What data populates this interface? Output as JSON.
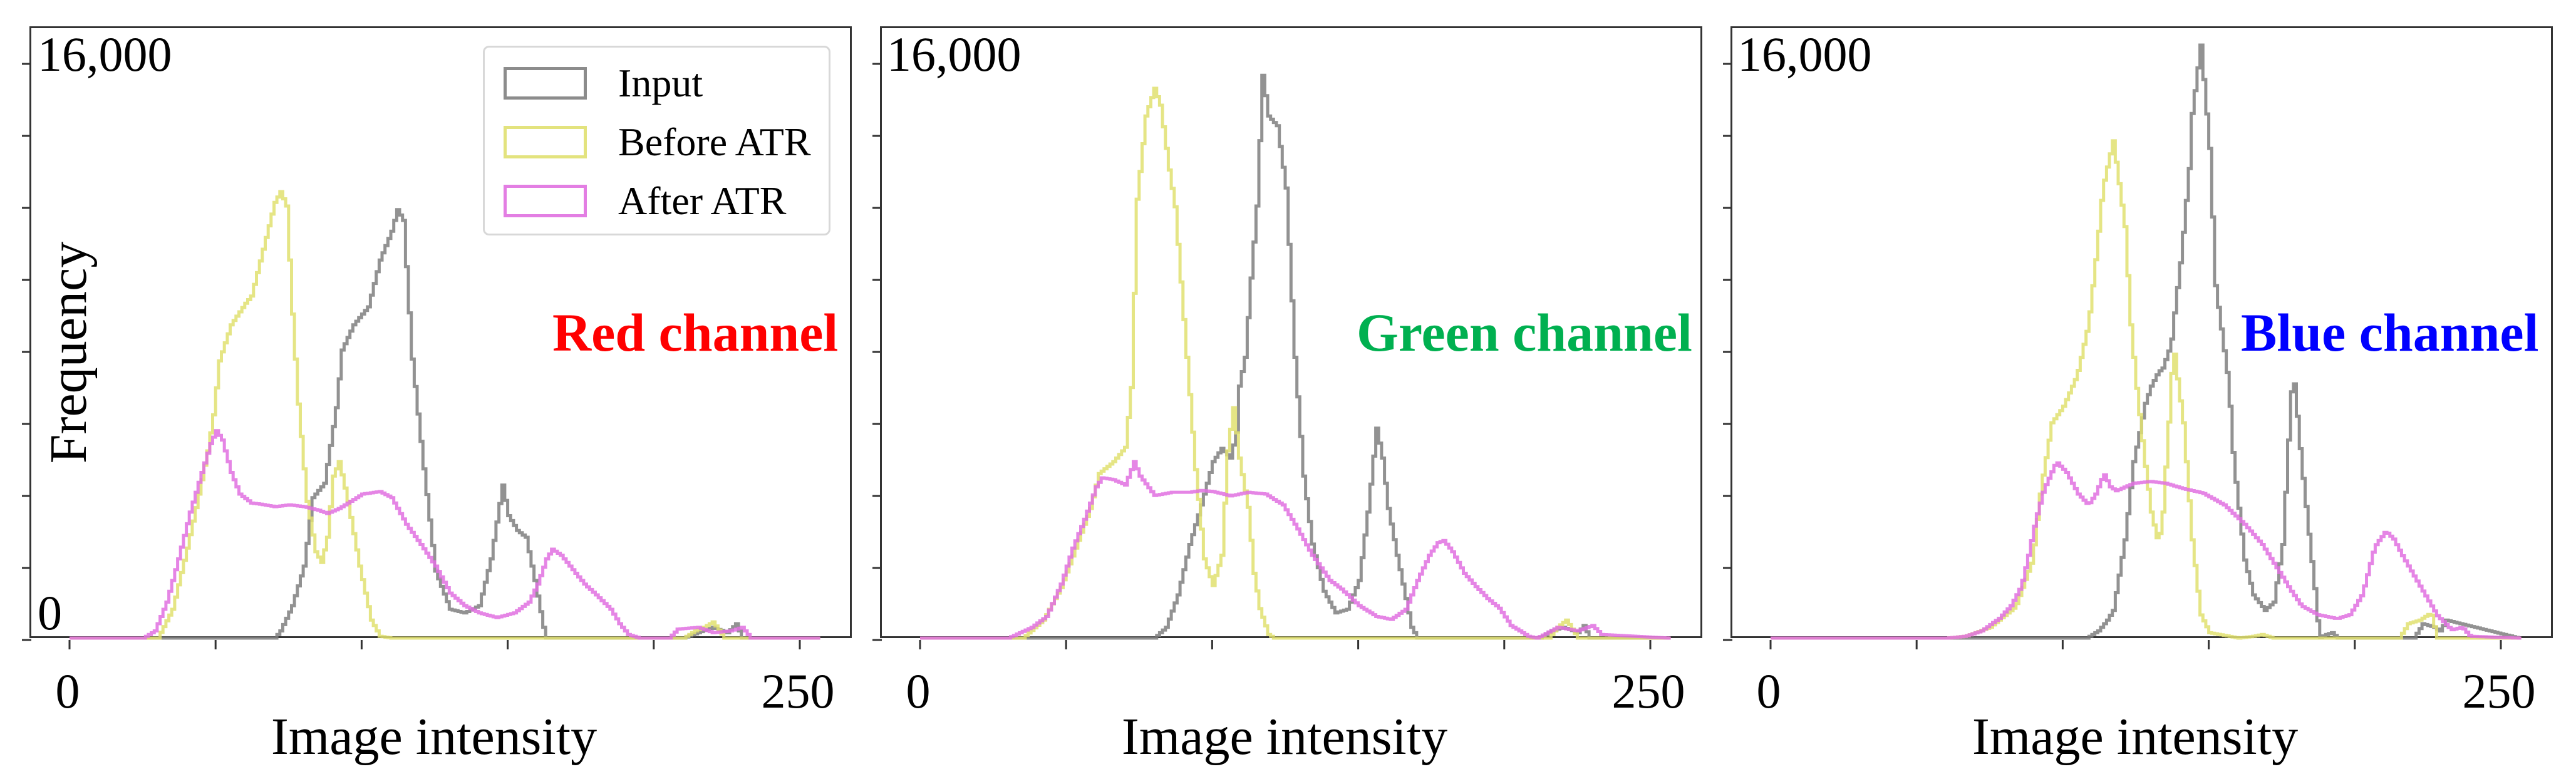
{
  "figure": {
    "ylabel": "Frequency",
    "xlabel": "Image intensity",
    "ytick_top": "16,000",
    "ytick_zero": "0",
    "xtick_left": "0",
    "xtick_right": "250",
    "legend": [
      {
        "label": "Input",
        "color": "#7f7f7f"
      },
      {
        "label": "Before ATR",
        "color": "#e0e070"
      },
      {
        "label": "After ATR",
        "color": "#e070e0"
      }
    ],
    "panels": [
      {
        "channel_label": "Red channel",
        "channel_color": "#FF0000"
      },
      {
        "channel_label": "Green channel",
        "channel_color": "#00B050"
      },
      {
        "channel_label": "Blue channel",
        "channel_color": "#0000FF"
      }
    ]
  },
  "chart_data": [
    {
      "type": "line",
      "title": "Red channel",
      "xlabel": "Image intensity",
      "ylabel": "Frequency",
      "xlim": [
        -13,
        270
      ],
      "ylim": [
        0,
        17000
      ],
      "xticks": [
        0,
        50,
        100,
        150,
        200,
        250
      ],
      "xtick_labels": [
        "0",
        "",
        "",
        "",
        "",
        "250"
      ],
      "yticks": [
        0,
        2000,
        4000,
        6000,
        8000,
        10000,
        12000,
        14000,
        16000
      ],
      "ytick_labels": [
        "0",
        "",
        "",
        "",
        "",
        "",
        "",
        "",
        "16,000"
      ],
      "legend_position": "upper right",
      "grid": false,
      "series": [
        {
          "name": "Input",
          "color": "#7f7f7f",
          "x": [
            0,
            70,
            72,
            76,
            80,
            83,
            87,
            91,
            93,
            97,
            102,
            106,
            110,
            112,
            114,
            117,
            121,
            125,
            130,
            135,
            140,
            144,
            148,
            150,
            153,
            156,
            159,
            162,
            163,
            210,
            215,
            220,
            225,
            228,
            230,
            256
          ],
          "y": [
            0,
            0,
            200,
            900,
            2000,
            3900,
            4300,
            6400,
            8000,
            8700,
            9200,
            10500,
            11300,
            11900,
            11600,
            7750,
            4700,
            1860,
            800,
            700,
            900,
            2200,
            4250,
            3400,
            2990,
            2800,
            1600,
            300,
            0,
            0,
            150,
            300,
            150,
            400,
            0,
            0
          ]
        },
        {
          "name": "Before ATR",
          "color": "#e0e070",
          "x": [
            0,
            30,
            35,
            40,
            44,
            47,
            49,
            51,
            55,
            60,
            62,
            66,
            70,
            72,
            74,
            76,
            78,
            81,
            84,
            86,
            88,
            90,
            92,
            95,
            99,
            103,
            106,
            110,
            210,
            214,
            217,
            220,
            224,
            256
          ],
          "y": [
            0,
            0,
            800,
            2500,
            4000,
            5200,
            6200,
            7700,
            8700,
            9300,
            9500,
            10800,
            12100,
            12400,
            12000,
            9000,
            6500,
            3800,
            2400,
            2100,
            2800,
            4500,
            4900,
            3800,
            2000,
            500,
            50,
            0,
            0,
            200,
            300,
            450,
            0,
            0
          ]
        },
        {
          "name": "After ATR",
          "color": "#e070e0",
          "x": [
            0,
            25,
            29,
            33,
            37,
            41,
            45,
            48,
            50,
            52,
            55,
            58,
            62,
            65,
            70,
            75,
            80,
            85,
            88,
            92,
            96,
            100,
            106,
            110,
            115,
            120,
            125,
            130,
            135,
            140,
            146,
            152,
            157,
            160,
            163,
            165,
            168,
            172,
            176,
            180,
            185,
            188,
            191,
            195,
            205,
            208,
            215,
            220,
            226,
            230,
            232,
            233,
            256
          ],
          "y": [
            0,
            0,
            200,
            1000,
            2200,
            3500,
            4600,
            5400,
            5760,
            5500,
            4600,
            4000,
            3750,
            3720,
            3650,
            3700,
            3650,
            3550,
            3460,
            3600,
            3800,
            4000,
            4070,
            3900,
            3160,
            2600,
            2000,
            1250,
            900,
            700,
            570,
            700,
            1000,
            1500,
            2200,
            2470,
            2300,
            1900,
            1500,
            1200,
            800,
            400,
            100,
            0,
            0,
            250,
            300,
            150,
            200,
            300,
            100,
            0,
            0
          ]
        }
      ]
    },
    {
      "type": "line",
      "title": "Green channel",
      "xlabel": "Image intensity",
      "ylabel": "Frequency",
      "xlim": [
        -13,
        270
      ],
      "ylim": [
        0,
        17000
      ],
      "xticks": [
        0,
        50,
        100,
        150,
        200,
        250
      ],
      "xtick_labels": [
        "0",
        "",
        "",
        "",
        "",
        "250"
      ],
      "yticks": [
        0,
        2000,
        4000,
        6000,
        8000,
        10000,
        12000,
        14000,
        16000
      ],
      "ytick_labels": [
        "",
        "",
        "",
        "",
        "",
        "",
        "",
        "",
        "16,000"
      ],
      "grid": false,
      "series": [
        {
          "name": "Input",
          "color": "#7f7f7f",
          "x": [
            0,
            80,
            84,
            88,
            92,
            96,
            100,
            103,
            106,
            108,
            109,
            111,
            113,
            115,
            117,
            119,
            122,
            125,
            128,
            131,
            134,
            138,
            142,
            146,
            150,
            153,
            156,
            158,
            160,
            163,
            166,
            168,
            170,
            212,
            216,
            220,
            225,
            227,
            229,
            256
          ],
          "y": [
            0,
            0,
            300,
            1200,
            2600,
            3700,
            4900,
            5270,
            5000,
            5720,
            7000,
            7800,
            10000,
            12000,
            15630,
            14500,
            14230,
            12500,
            7800,
            4500,
            2610,
            1300,
            700,
            800,
            1600,
            3500,
            5830,
            5000,
            3600,
            2300,
            1100,
            300,
            0,
            0,
            200,
            300,
            150,
            350,
            0,
            0
          ]
        },
        {
          "name": "Before ATR",
          "color": "#e0e070",
          "x": [
            0,
            35,
            42,
            48,
            53,
            58,
            61,
            66,
            70,
            72,
            74,
            77,
            80,
            82,
            85,
            87,
            91,
            94,
            97,
            100,
            103,
            105,
            107,
            109,
            112,
            114,
            116,
            119,
            121,
            215,
            218,
            221,
            225,
            256
          ],
          "y": [
            0,
            0,
            500,
            1400,
            2500,
            3600,
            4570,
            4900,
            5300,
            6960,
            12190,
            14500,
            15270,
            14800,
            13000,
            11980,
            7800,
            4680,
            2200,
            1460,
            2300,
            5200,
            6400,
            5000,
            3630,
            1800,
            820,
            100,
            0,
            0,
            300,
            500,
            0,
            0
          ]
        },
        {
          "name": "After ATR",
          "color": "#e070e0",
          "x": [
            0,
            30,
            38,
            43,
            48,
            52,
            56,
            60,
            62,
            66,
            70,
            73,
            75,
            80,
            86,
            92,
            96,
            100,
            106,
            112,
            118,
            124,
            129,
            134,
            140,
            144,
            150,
            156,
            161,
            166,
            170,
            174,
            177,
            179,
            182,
            186,
            190,
            194,
            198,
            202,
            208,
            211,
            218,
            225,
            230,
            233,
            256
          ],
          "y": [
            0,
            0,
            300,
            600,
            1500,
            2500,
            3300,
            4200,
            4450,
            4400,
            4250,
            4900,
            4500,
            3960,
            4050,
            4050,
            4100,
            4070,
            3950,
            4050,
            4000,
            3700,
            3030,
            2300,
            1600,
            1360,
            900,
            600,
            520,
            800,
            1600,
            2300,
            2650,
            2710,
            2400,
            1800,
            1430,
            1100,
            830,
            350,
            50,
            0,
            300,
            200,
            350,
            100,
            0
          ]
        }
      ]
    },
    {
      "type": "line",
      "title": "Blue channel",
      "xlabel": "Image intensity",
      "ylabel": "Frequency",
      "xlim": [
        -13,
        270
      ],
      "ylim": [
        0,
        17000
      ],
      "xticks": [
        0,
        50,
        100,
        150,
        200,
        250
      ],
      "xtick_labels": [
        "0",
        "",
        "",
        "",
        "",
        "250"
      ],
      "yticks": [
        0,
        2000,
        4000,
        6000,
        8000,
        10000,
        12000,
        14000,
        16000
      ],
      "ytick_labels": [
        "",
        "",
        "",
        "",
        "",
        "",
        "",
        "",
        "16,000"
      ],
      "grid": false,
      "series": [
        {
          "name": "Input",
          "color": "#7f7f7f",
          "x": [
            0,
            108,
            112,
            115,
            117,
            121,
            124,
            128,
            130,
            132.5,
            134,
            136.8,
            138.3,
            140.2,
            143,
            144,
            147,
            150,
            152,
            156.5,
            158.2,
            162,
            165,
            169,
            172,
            175,
            177,
            178.5,
            181.4,
            184.2,
            186.3,
            187.5,
            190,
            192,
            194,
            220,
            223,
            227,
            229,
            231,
            256
          ],
          "y": [
            0,
            0,
            200,
            500,
            770,
            2730,
            4900,
            6520,
            7000,
            7390,
            7500,
            8160,
            9250,
            10560,
            13040,
            14570,
            16470,
            13600,
            9790,
            7080,
            4900,
            2170,
            1200,
            770,
            1000,
            2600,
            5500,
            7510,
            4900,
            2730,
            1150,
            0,
            100,
            150,
            0,
            0,
            400,
            300,
            200,
            500,
            0
          ]
        },
        {
          "name": "Before ATR",
          "color": "#e0e070",
          "x": [
            0,
            60,
            66.5,
            75,
            83.6,
            89.4,
            92.2,
            96,
            99.9,
            104.6,
            108.5,
            111.5,
            113.4,
            117,
            121,
            123,
            124.8,
            127.8,
            130,
            132.5,
            134,
            136,
            137.6,
            139,
            141,
            144,
            146.9,
            150,
            160,
            165,
            168,
            172,
            215,
            218,
            222,
            225.8,
            228,
            256
          ],
          "y": [
            0,
            0,
            50,
            300,
            870,
            2170,
            4140,
            5980,
            6420,
            7290,
            8700,
            10870,
            12500,
            13810,
            11430,
            8700,
            7080,
            4900,
            3500,
            2610,
            3500,
            6000,
            8160,
            7200,
            5980,
            2730,
            660,
            150,
            0,
            50,
            100,
            0,
            0,
            400,
            500,
            700,
            0,
            0
          ]
        },
        {
          "name": "After ATR",
          "color": "#e070e0",
          "x": [
            0,
            60,
            66.5,
            72,
            78,
            82,
            85.5,
            88,
            90.4,
            93.3,
            97.6,
            101,
            105,
            108.5,
            111,
            113.8,
            116,
            118,
            124,
            129.7,
            135,
            141,
            147.7,
            155,
            162,
            168,
            173.7,
            178,
            181.4,
            187,
            193.6,
            198,
            202.2,
            206.5,
            210.3,
            213,
            216.3,
            222.1,
            227.9,
            232.8,
            236.5,
            239.3,
            256
          ],
          "y": [
            0,
            0,
            50,
            200,
            550,
            900,
            1430,
            2300,
            3270,
            4140,
            4900,
            4600,
            4000,
            3700,
            4000,
            4570,
            4200,
            4090,
            4300,
            4350,
            4300,
            4150,
            4030,
            3700,
            3160,
            2600,
            1860,
            1300,
            900,
            650,
            540,
            650,
            1200,
            2540,
            2970,
            2750,
            2240,
            1430,
            630,
            230,
            300,
            50,
            0
          ]
        }
      ]
    }
  ]
}
